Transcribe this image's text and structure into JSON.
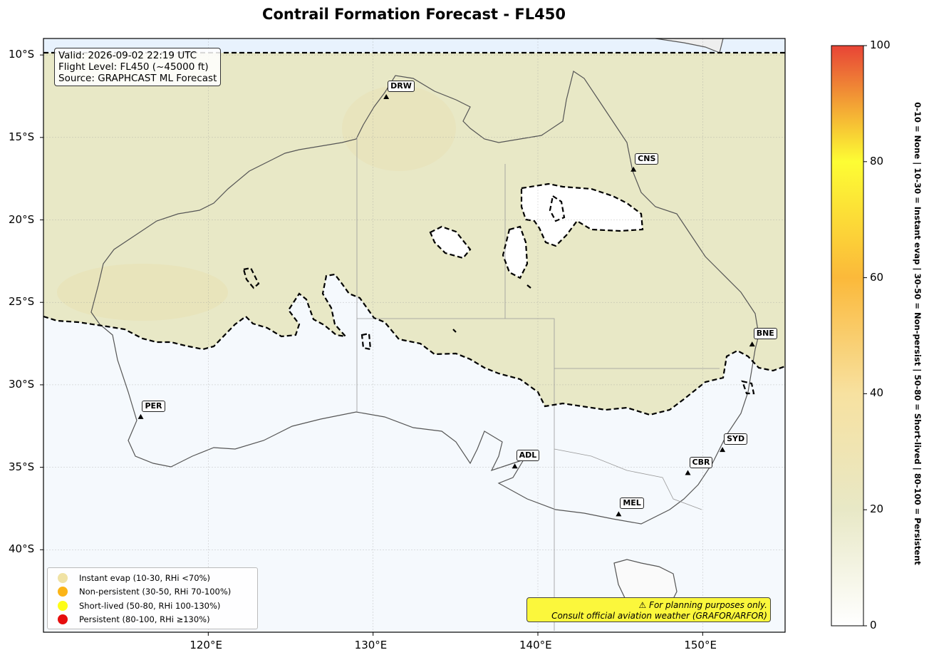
{
  "title": "Contrail Formation Forecast - FL450",
  "info": {
    "valid": "Valid: 2026-09-02 22:19 UTC",
    "flight_level": "Flight Level: FL450 (~45000 ft)",
    "source": "Source: GRAPHCAST ML Forecast"
  },
  "map": {
    "lon_range": [
      110,
      155
    ],
    "lat_range": [
      -45,
      -9
    ],
    "lon_ticks": [
      "120°E",
      "130°E",
      "140°E",
      "150°E"
    ],
    "lat_ticks": [
      "10°S",
      "15°S",
      "20°S",
      "25°S",
      "30°S",
      "35°S",
      "40°S"
    ],
    "grid": true,
    "colors": {
      "ocean": "#f5f9fd",
      "north_fill": "#e8e8c6",
      "dashed_contour": "#000000",
      "coast": "#555555"
    }
  },
  "cities": [
    {
      "code": "DRW",
      "lon": 130.8,
      "lat": -12.5
    },
    {
      "code": "CNS",
      "lon": 145.8,
      "lat": -16.9
    },
    {
      "code": "BNE",
      "lon": 153.0,
      "lat": -27.5
    },
    {
      "code": "PER",
      "lon": 115.9,
      "lat": -31.9
    },
    {
      "code": "SYD",
      "lon": 151.2,
      "lat": -33.9
    },
    {
      "code": "CBR",
      "lon": 149.1,
      "lat": -35.3
    },
    {
      "code": "ADL",
      "lon": 138.6,
      "lat": -34.9
    },
    {
      "code": "MEL",
      "lon": 144.9,
      "lat": -37.8
    }
  ],
  "legend": [
    {
      "label": "Instant evap (10-30, RHi <70%)",
      "color": "#f0e2a4"
    },
    {
      "label": "Non-persistent (30-50, RHi 70-100%)",
      "color": "#fbb417"
    },
    {
      "label": "Short-lived (50-80, RHi 100-130%)",
      "color": "#fdfd17"
    },
    {
      "label": "Persistent (80-100, RHi ≥130%)",
      "color": "#e60e0e"
    }
  ],
  "disclaimer": {
    "line1": "⚠ For planning purposes only.",
    "line2": "Consult official aviation weather (GRAFOR/ARFOR)"
  },
  "colorbar": {
    "min": 0,
    "max": 100,
    "ticks": [
      "0",
      "20",
      "40",
      "60",
      "80",
      "100"
    ],
    "stops": [
      {
        "value": 0,
        "color": "#ffffff"
      },
      {
        "value": 20,
        "color": "#e8e8c6"
      },
      {
        "value": 40,
        "color": "#f7e1a0"
      },
      {
        "value": 60,
        "color": "#fbb93a"
      },
      {
        "value": 80,
        "color": "#fdfd34"
      },
      {
        "value": 100,
        "color": "#e84436"
      }
    ],
    "description": "0-10 = None  |  10-30 = Instant evap  |  30-50 = Non-persist  |  50-80 = Short-lived  |  80-100 = Persistent"
  }
}
